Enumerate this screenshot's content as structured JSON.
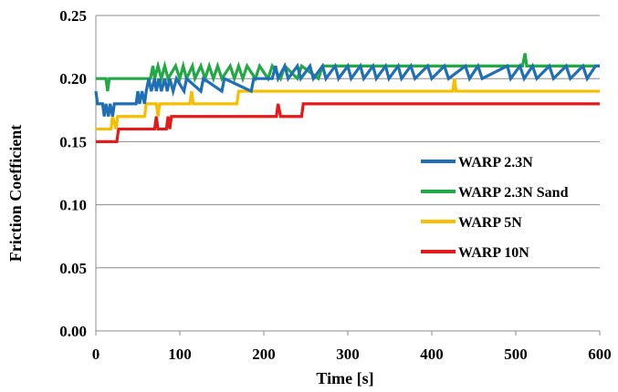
{
  "chart_data": {
    "type": "line",
    "title": "",
    "xlabel": "Time [s]",
    "ylabel": "Friction Coefficient",
    "xlim": [
      0,
      600
    ],
    "ylim": [
      0,
      0.25
    ],
    "x_ticks": [
      "0",
      "100",
      "200",
      "300",
      "400",
      "500",
      "600"
    ],
    "y_ticks": [
      "0.00",
      "0.05",
      "0.10",
      "0.15",
      "0.20",
      "0.25"
    ],
    "grid": "horizontal",
    "legend_position": "right, middle",
    "series": [
      {
        "name": "WARP 2.3N",
        "color": "#1f6fb5",
        "points": [
          [
            0,
            0.19
          ],
          [
            2,
            0.18
          ],
          [
            8,
            0.18
          ],
          [
            10,
            0.17
          ],
          [
            12,
            0.18
          ],
          [
            15,
            0.17
          ],
          [
            17,
            0.18
          ],
          [
            20,
            0.17
          ],
          [
            22,
            0.18
          ],
          [
            48,
            0.18
          ],
          [
            50,
            0.19
          ],
          [
            52,
            0.18
          ],
          [
            55,
            0.19
          ],
          [
            58,
            0.18
          ],
          [
            60,
            0.19
          ],
          [
            63,
            0.2
          ],
          [
            66,
            0.19
          ],
          [
            70,
            0.2
          ],
          [
            72,
            0.19
          ],
          [
            75,
            0.2
          ],
          [
            78,
            0.19
          ],
          [
            82,
            0.2
          ],
          [
            85,
            0.19
          ],
          [
            88,
            0.2
          ],
          [
            92,
            0.19
          ],
          [
            96,
            0.2
          ],
          [
            105,
            0.19
          ],
          [
            108,
            0.2
          ],
          [
            125,
            0.19
          ],
          [
            128,
            0.2
          ],
          [
            150,
            0.19
          ],
          [
            153,
            0.2
          ],
          [
            185,
            0.19
          ],
          [
            188,
            0.2
          ],
          [
            210,
            0.2
          ],
          [
            214,
            0.21
          ],
          [
            217,
            0.2
          ],
          [
            225,
            0.21
          ],
          [
            229,
            0.2
          ],
          [
            240,
            0.21
          ],
          [
            244,
            0.2
          ],
          [
            255,
            0.21
          ],
          [
            259,
            0.2
          ],
          [
            270,
            0.21
          ],
          [
            274,
            0.2
          ],
          [
            285,
            0.21
          ],
          [
            289,
            0.2
          ],
          [
            300,
            0.21
          ],
          [
            304,
            0.2
          ],
          [
            315,
            0.21
          ],
          [
            319,
            0.2
          ],
          [
            330,
            0.21
          ],
          [
            334,
            0.2
          ],
          [
            345,
            0.21
          ],
          [
            349,
            0.2
          ],
          [
            360,
            0.21
          ],
          [
            364,
            0.2
          ],
          [
            375,
            0.21
          ],
          [
            380,
            0.2
          ],
          [
            395,
            0.21
          ],
          [
            400,
            0.2
          ],
          [
            415,
            0.21
          ],
          [
            420,
            0.2
          ],
          [
            440,
            0.21
          ],
          [
            445,
            0.2
          ],
          [
            455,
            0.21
          ],
          [
            460,
            0.2
          ],
          [
            490,
            0.21
          ],
          [
            494,
            0.2
          ],
          [
            505,
            0.21
          ],
          [
            510,
            0.2
          ],
          [
            520,
            0.21
          ],
          [
            525,
            0.2
          ],
          [
            540,
            0.21
          ],
          [
            545,
            0.2
          ],
          [
            560,
            0.21
          ],
          [
            565,
            0.2
          ],
          [
            580,
            0.21
          ],
          [
            585,
            0.2
          ],
          [
            595,
            0.21
          ],
          [
            600,
            0.21
          ]
        ]
      },
      {
        "name": "WARP 2.3N Sand",
        "color": "#22a844",
        "points": [
          [
            0,
            0.2
          ],
          [
            12,
            0.2
          ],
          [
            14,
            0.19
          ],
          [
            16,
            0.2
          ],
          [
            65,
            0.2
          ],
          [
            68,
            0.21
          ],
          [
            70,
            0.2
          ],
          [
            74,
            0.21
          ],
          [
            78,
            0.2
          ],
          [
            82,
            0.21
          ],
          [
            86,
            0.2
          ],
          [
            95,
            0.21
          ],
          [
            100,
            0.2
          ],
          [
            104,
            0.21
          ],
          [
            108,
            0.2
          ],
          [
            115,
            0.21
          ],
          [
            118,
            0.2
          ],
          [
            125,
            0.21
          ],
          [
            130,
            0.2
          ],
          [
            135,
            0.21
          ],
          [
            140,
            0.2
          ],
          [
            145,
            0.21
          ],
          [
            150,
            0.2
          ],
          [
            160,
            0.21
          ],
          [
            165,
            0.2
          ],
          [
            170,
            0.21
          ],
          [
            175,
            0.2
          ],
          [
            180,
            0.21
          ],
          [
            190,
            0.2
          ],
          [
            195,
            0.21
          ],
          [
            205,
            0.2
          ],
          [
            210,
            0.21
          ],
          [
            220,
            0.2
          ],
          [
            225,
            0.21
          ],
          [
            240,
            0.2
          ],
          [
            245,
            0.21
          ],
          [
            265,
            0.2
          ],
          [
            270,
            0.21
          ],
          [
            300,
            0.21
          ],
          [
            508,
            0.21
          ],
          [
            511,
            0.22
          ],
          [
            513,
            0.21
          ],
          [
            600,
            0.21
          ]
        ]
      },
      {
        "name": "WARP 5N",
        "color": "#f7be00",
        "points": [
          [
            0,
            0.16
          ],
          [
            18,
            0.16
          ],
          [
            20,
            0.17
          ],
          [
            24,
            0.16
          ],
          [
            26,
            0.17
          ],
          [
            58,
            0.17
          ],
          [
            60,
            0.18
          ],
          [
            72,
            0.18
          ],
          [
            74,
            0.17
          ],
          [
            76,
            0.18
          ],
          [
            112,
            0.18
          ],
          [
            114,
            0.19
          ],
          [
            116,
            0.18
          ],
          [
            168,
            0.18
          ],
          [
            170,
            0.19
          ],
          [
            425,
            0.19
          ],
          [
            427,
            0.2
          ],
          [
            429,
            0.19
          ],
          [
            600,
            0.19
          ]
        ]
      },
      {
        "name": "WARP 10N",
        "color": "#e41a1a",
        "points": [
          [
            0,
            0.15
          ],
          [
            25,
            0.15
          ],
          [
            27,
            0.16
          ],
          [
            70,
            0.16
          ],
          [
            72,
            0.17
          ],
          [
            74,
            0.16
          ],
          [
            84,
            0.16
          ],
          [
            86,
            0.17
          ],
          [
            88,
            0.16
          ],
          [
            90,
            0.17
          ],
          [
            215,
            0.17
          ],
          [
            217,
            0.18
          ],
          [
            220,
            0.17
          ],
          [
            245,
            0.17
          ],
          [
            247,
            0.18
          ],
          [
            600,
            0.18
          ]
        ]
      }
    ]
  }
}
